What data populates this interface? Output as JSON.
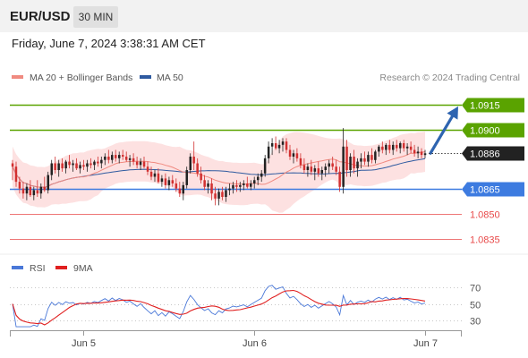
{
  "header": {
    "symbol": "EUR/USD",
    "interval": "30 MIN",
    "timestamp": "Friday, June 7, 2024 3:38:31 AM CET"
  },
  "colors": {
    "support": "#3d7be0",
    "resistance": "#5aa300",
    "secondary": "#e84a4a",
    "current": "#222222",
    "ma20": "#f08a80",
    "ma50": "#2e5aa0",
    "bollinger": "#fde1e1",
    "bull": "#222222",
    "bear": "#d23030",
    "rsi": "#4a78d8",
    "rsi_ma": "#e02020",
    "arrow": "#2e64b0"
  },
  "chart_data": [
    {
      "type": "candlestick",
      "legend": [
        {
          "name": "MA 20 + Bollinger Bands",
          "color": "#f08a80"
        },
        {
          "name": "MA 50",
          "color": "#2e5aa0"
        }
      ],
      "credit": "Research © 2024 Trading Central",
      "ylim": [
        1.0828,
        1.0924
      ],
      "current_price": "1.0886",
      "levels": [
        {
          "value": 1.0915,
          "label": "1.0915",
          "kind": "resistance"
        },
        {
          "value": 1.09,
          "label": "1.0900",
          "kind": "resistance"
        },
        {
          "value": 1.0865,
          "label": "1.0865",
          "kind": "support"
        },
        {
          "value": 1.085,
          "label": "1.0850",
          "kind": "secondary"
        },
        {
          "value": 1.0835,
          "label": "1.0835",
          "kind": "secondary"
        }
      ],
      "x_ticks": [
        {
          "label": "Jun 5",
          "index": 20
        },
        {
          "label": "Jun 6",
          "index": 68
        },
        {
          "label": "Jun 7",
          "index": 116
        }
      ],
      "ohlc": [
        [
          1.088,
          1.0882,
          1.087,
          1.0878
        ],
        [
          1.0878,
          1.0881,
          1.0866,
          1.0869
        ],
        [
          1.0869,
          1.0872,
          1.0862,
          1.0865
        ],
        [
          1.0865,
          1.0869,
          1.0859,
          1.0862
        ],
        [
          1.0862,
          1.0868,
          1.0858,
          1.0866
        ],
        [
          1.0866,
          1.087,
          1.086,
          1.0861
        ],
        [
          1.0861,
          1.0866,
          1.0858,
          1.0864
        ],
        [
          1.0864,
          1.087,
          1.086,
          1.0862
        ],
        [
          1.0862,
          1.0868,
          1.0859,
          1.0866
        ],
        [
          1.0866,
          1.0872,
          1.0863,
          1.0864
        ],
        [
          1.0864,
          1.0875,
          1.0862,
          1.0873
        ],
        [
          1.0873,
          1.0882,
          1.087,
          1.088
        ],
        [
          1.088,
          1.0884,
          1.0874,
          1.0876
        ],
        [
          1.0876,
          1.0882,
          1.0872,
          1.088
        ],
        [
          1.088,
          1.0883,
          1.0875,
          1.0877
        ],
        [
          1.0877,
          1.0882,
          1.0874,
          1.0881
        ],
        [
          1.0881,
          1.0885,
          1.0877,
          1.0879
        ],
        [
          1.0879,
          1.0882,
          1.0875,
          1.088
        ],
        [
          1.088,
          1.0883,
          1.0876,
          1.0877
        ],
        [
          1.0877,
          1.0881,
          1.0874,
          1.0879
        ],
        [
          1.0879,
          1.0882,
          1.0876,
          1.0878
        ],
        [
          1.0878,
          1.0882,
          1.0875,
          1.088
        ],
        [
          1.088,
          1.0883,
          1.0877,
          1.0879
        ],
        [
          1.0879,
          1.0882,
          1.0876,
          1.0881
        ],
        [
          1.0881,
          1.0884,
          1.0878,
          1.088
        ],
        [
          1.088,
          1.0884,
          1.0877,
          1.0882
        ],
        [
          1.0882,
          1.0886,
          1.0879,
          1.0884
        ],
        [
          1.0884,
          1.0888,
          1.088,
          1.0882
        ],
        [
          1.0882,
          1.0887,
          1.088,
          1.0885
        ],
        [
          1.0885,
          1.0888,
          1.0881,
          1.0883
        ],
        [
          1.0883,
          1.0887,
          1.088,
          1.0885
        ],
        [
          1.0885,
          1.0888,
          1.0882,
          1.0884
        ],
        [
          1.0884,
          1.0887,
          1.0881,
          1.0882
        ],
        [
          1.0882,
          1.0885,
          1.0878,
          1.0883
        ],
        [
          1.0883,
          1.0886,
          1.0879,
          1.0881
        ],
        [
          1.0881,
          1.0884,
          1.0877,
          1.0879
        ],
        [
          1.0879,
          1.0883,
          1.0876,
          1.0881
        ],
        [
          1.0881,
          1.0884,
          1.0877,
          1.0878
        ],
        [
          1.0878,
          1.0881,
          1.0873,
          1.0875
        ],
        [
          1.0875,
          1.0878,
          1.087,
          1.0872
        ],
        [
          1.0872,
          1.0876,
          1.0869,
          1.0874
        ],
        [
          1.0874,
          1.0877,
          1.0868,
          1.0869
        ],
        [
          1.0869,
          1.0873,
          1.0866,
          1.0871
        ],
        [
          1.0871,
          1.0874,
          1.0865,
          1.0867
        ],
        [
          1.0867,
          1.0872,
          1.0864,
          1.087
        ],
        [
          1.087,
          1.0873,
          1.0866,
          1.0868
        ],
        [
          1.0868,
          1.0871,
          1.0863,
          1.0865
        ],
        [
          1.0865,
          1.0869,
          1.086,
          1.0862
        ],
        [
          1.0862,
          1.0869,
          1.0858,
          1.0867
        ],
        [
          1.0867,
          1.0878,
          1.0865,
          1.0876
        ],
        [
          1.0876,
          1.0886,
          1.0874,
          1.0884
        ],
        [
          1.0884,
          1.0893,
          1.0876,
          1.088
        ],
        [
          1.088,
          1.0883,
          1.0872,
          1.0874
        ],
        [
          1.0874,
          1.0878,
          1.0868,
          1.087
        ],
        [
          1.087,
          1.0873,
          1.0864,
          1.0866
        ],
        [
          1.0866,
          1.087,
          1.0862,
          1.0868
        ],
        [
          1.0868,
          1.0871,
          1.0858,
          1.0862
        ],
        [
          1.0862,
          1.0866,
          1.0855,
          1.0859
        ],
        [
          1.0859,
          1.0865,
          1.0855,
          1.0863
        ],
        [
          1.0863,
          1.0866,
          1.0858,
          1.086
        ],
        [
          1.086,
          1.0866,
          1.0857,
          1.0864
        ],
        [
          1.0864,
          1.0868,
          1.0861,
          1.0865
        ],
        [
          1.0865,
          1.0869,
          1.0862,
          1.0867
        ],
        [
          1.0867,
          1.087,
          1.0863,
          1.0866
        ],
        [
          1.0866,
          1.0869,
          1.0863,
          1.0867
        ],
        [
          1.0867,
          1.087,
          1.0864,
          1.0868
        ],
        [
          1.0868,
          1.0872,
          1.0865,
          1.0866
        ],
        [
          1.0866,
          1.087,
          1.0864,
          1.0868
        ],
        [
          1.0868,
          1.0872,
          1.0865,
          1.087
        ],
        [
          1.087,
          1.0874,
          1.0867,
          1.0872
        ],
        [
          1.0872,
          1.0876,
          1.0869,
          1.0874
        ],
        [
          1.0874,
          1.0885,
          1.0872,
          1.0883
        ],
        [
          1.0883,
          1.0893,
          1.088,
          1.089
        ],
        [
          1.089,
          1.0895,
          1.0885,
          1.0892
        ],
        [
          1.0892,
          1.0896,
          1.0888,
          1.0889
        ],
        [
          1.0889,
          1.0894,
          1.0886,
          1.0891
        ],
        [
          1.0891,
          1.0895,
          1.0887,
          1.0893
        ],
        [
          1.0893,
          1.0895,
          1.0886,
          1.0888
        ],
        [
          1.0888,
          1.0891,
          1.0882,
          1.0884
        ],
        [
          1.0884,
          1.0888,
          1.088,
          1.0886
        ],
        [
          1.0886,
          1.0889,
          1.0881,
          1.0883
        ],
        [
          1.0883,
          1.0886,
          1.0877,
          1.0879
        ],
        [
          1.0879,
          1.0883,
          1.0874,
          1.0876
        ],
        [
          1.0876,
          1.088,
          1.0872,
          1.0878
        ],
        [
          1.0878,
          1.0882,
          1.0873,
          1.0875
        ],
        [
          1.0875,
          1.0879,
          1.087,
          1.0877
        ],
        [
          1.0877,
          1.0881,
          1.0872,
          1.0874
        ],
        [
          1.0874,
          1.0878,
          1.087,
          1.0876
        ],
        [
          1.0876,
          1.088,
          1.0872,
          1.0878
        ],
        [
          1.0878,
          1.0882,
          1.0874,
          1.088
        ],
        [
          1.088,
          1.0884,
          1.0876,
          1.0878
        ],
        [
          1.0878,
          1.0882,
          1.0873,
          1.0875
        ],
        [
          1.0875,
          1.0878,
          1.0863,
          1.0866
        ],
        [
          1.0866,
          1.0901,
          1.0862,
          1.089
        ],
        [
          1.089,
          1.0894,
          1.0872,
          1.0876
        ],
        [
          1.0876,
          1.0886,
          1.0872,
          1.0884
        ],
        [
          1.0884,
          1.0888,
          1.0874,
          1.0877
        ],
        [
          1.0877,
          1.0883,
          1.0872,
          1.0881
        ],
        [
          1.0881,
          1.0886,
          1.0877,
          1.0883
        ],
        [
          1.0883,
          1.0887,
          1.0879,
          1.0881
        ],
        [
          1.0881,
          1.0887,
          1.0878,
          1.0885
        ],
        [
          1.0885,
          1.0889,
          1.088,
          1.0882
        ],
        [
          1.0882,
          1.0888,
          1.088,
          1.0887
        ],
        [
          1.0887,
          1.0891,
          1.0884,
          1.089
        ],
        [
          1.089,
          1.0893,
          1.0886,
          1.0888
        ],
        [
          1.0888,
          1.0892,
          1.0885,
          1.0891
        ],
        [
          1.0891,
          1.0894,
          1.0886,
          1.0888
        ],
        [
          1.0888,
          1.0893,
          1.0885,
          1.0891
        ],
        [
          1.0891,
          1.0894,
          1.0887,
          1.0889
        ],
        [
          1.0889,
          1.0893,
          1.0886,
          1.0892
        ],
        [
          1.0892,
          1.0894,
          1.0887,
          1.0889
        ],
        [
          1.0889,
          1.0892,
          1.0885,
          1.089
        ],
        [
          1.089,
          1.0893,
          1.0886,
          1.0888
        ],
        [
          1.0888,
          1.0891,
          1.0884,
          1.0886
        ],
        [
          1.0886,
          1.089,
          1.0883,
          1.0887
        ],
        [
          1.0887,
          1.0889,
          1.0883,
          1.0885
        ],
        [
          1.0885,
          1.0888,
          1.0883,
          1.0886
        ]
      ],
      "projection": {
        "from": 1.0886,
        "to": 1.0915
      }
    },
    {
      "type": "line",
      "legend": [
        {
          "name": "RSI",
          "color": "#4a78d8"
        },
        {
          "name": "9MA",
          "color": "#e02020"
        }
      ],
      "ylim": [
        22,
        78
      ],
      "y_ticks": [
        {
          "value": 70,
          "label": "70"
        },
        {
          "value": 50,
          "label": "50"
        },
        {
          "value": 30,
          "label": "30"
        }
      ]
    }
  ]
}
